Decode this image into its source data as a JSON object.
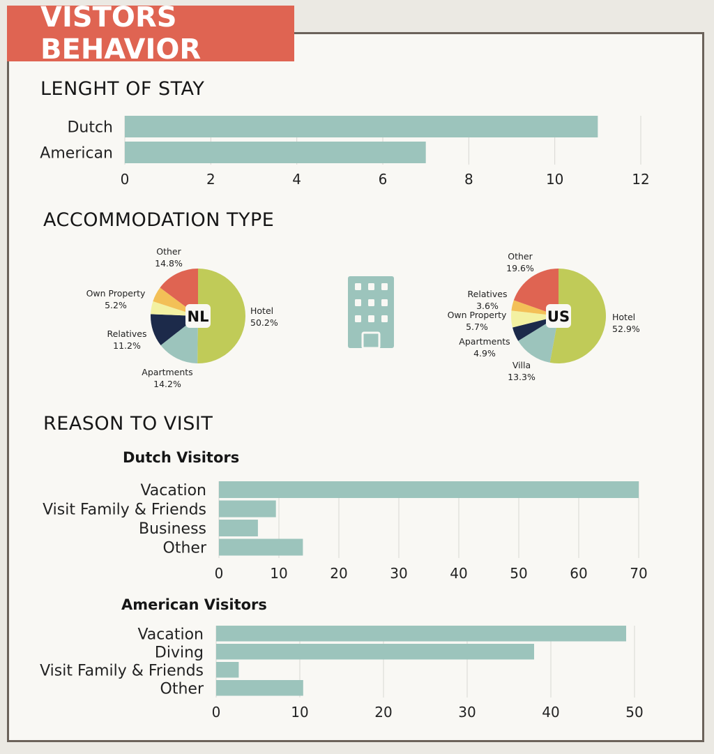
{
  "banner": {
    "title": "VISTORS BEHAVIOR"
  },
  "sections": {
    "stay": "LENGHT OF STAY",
    "accommodation": "ACCOMMODATION TYPE",
    "reason": "REASON TO VISIT",
    "dutch_visitors": "Dutch Visitors",
    "american_visitors": "American Visitors"
  },
  "icons": {
    "building": "building-icon"
  },
  "colors": {
    "bar": "#9cc4bc",
    "banner": "#df6452",
    "hotel": "#c0cb58",
    "apartments_villa": "#9cc4bc",
    "relatives_navy": "#1c2a4a",
    "pale_yellow": "#f3f1a2",
    "orange": "#f3c057",
    "other_red": "#df6452"
  },
  "chart_data": [
    {
      "id": "stay",
      "type": "bar",
      "orientation": "horizontal",
      "categories": [
        "Dutch",
        "American"
      ],
      "values": [
        11,
        7
      ],
      "xlim": [
        0,
        12
      ],
      "xticks": [
        0,
        2,
        4,
        6,
        8,
        10,
        12
      ],
      "title": "LENGHT OF STAY",
      "grid": true
    },
    {
      "id": "nl",
      "type": "pie",
      "center_label": "NL",
      "slices": [
        {
          "name": "Hotel",
          "label": "50.2%",
          "value": 50.2,
          "color": "#c0cb58"
        },
        {
          "name": "Apartments",
          "label": "14.2%",
          "value": 14.2,
          "color": "#9cc4bc"
        },
        {
          "name": "Relatives",
          "label": "11.2%",
          "value": 11.2,
          "color": "#1c2a4a"
        },
        {
          "name": "",
          "label": "",
          "value": 4.4,
          "color": "#f3f1a2"
        },
        {
          "name": "Own Property",
          "label": "5.2%",
          "value": 5.2,
          "color": "#f3c057"
        },
        {
          "name": "Other",
          "label": "14.8%",
          "value": 14.8,
          "color": "#df6452"
        }
      ]
    },
    {
      "id": "us",
      "type": "pie",
      "center_label": "US",
      "slices": [
        {
          "name": "Hotel",
          "label": "52.9%",
          "value": 52.9,
          "color": "#c0cb58"
        },
        {
          "name": "Villa",
          "label": "13.3%",
          "value": 13.3,
          "color": "#9cc4bc"
        },
        {
          "name": "Apartments",
          "label": "4.9%",
          "value": 4.9,
          "color": "#1c2a4a"
        },
        {
          "name": "Own Property",
          "label": "5.7%",
          "value": 5.7,
          "color": "#f3f1a2"
        },
        {
          "name": "Relatives",
          "label": "3.6%",
          "value": 3.6,
          "color": "#f3c057"
        },
        {
          "name": "Other",
          "label": "19.6%",
          "value": 19.6,
          "color": "#df6452"
        }
      ]
    },
    {
      "id": "dutch_reason",
      "type": "bar",
      "orientation": "horizontal",
      "title": "Dutch Visitors",
      "categories": [
        "Vacation",
        "Visit Family & Friends",
        "Business",
        "Other"
      ],
      "values": [
        70,
        9.5,
        6.5,
        14
      ],
      "xlim": [
        0,
        70
      ],
      "xticks": [
        0,
        10,
        20,
        30,
        40,
        50,
        60,
        70
      ],
      "grid": true
    },
    {
      "id": "american_reason",
      "type": "bar",
      "orientation": "horizontal",
      "title": "American Visitors",
      "categories": [
        "Vacation",
        "Diving",
        "Visit Family & Friends",
        "Other"
      ],
      "values": [
        49,
        38,
        2.7,
        10.4
      ],
      "xlim": [
        0,
        50
      ],
      "xticks": [
        0,
        10,
        20,
        30,
        40,
        50
      ],
      "grid": true
    }
  ]
}
